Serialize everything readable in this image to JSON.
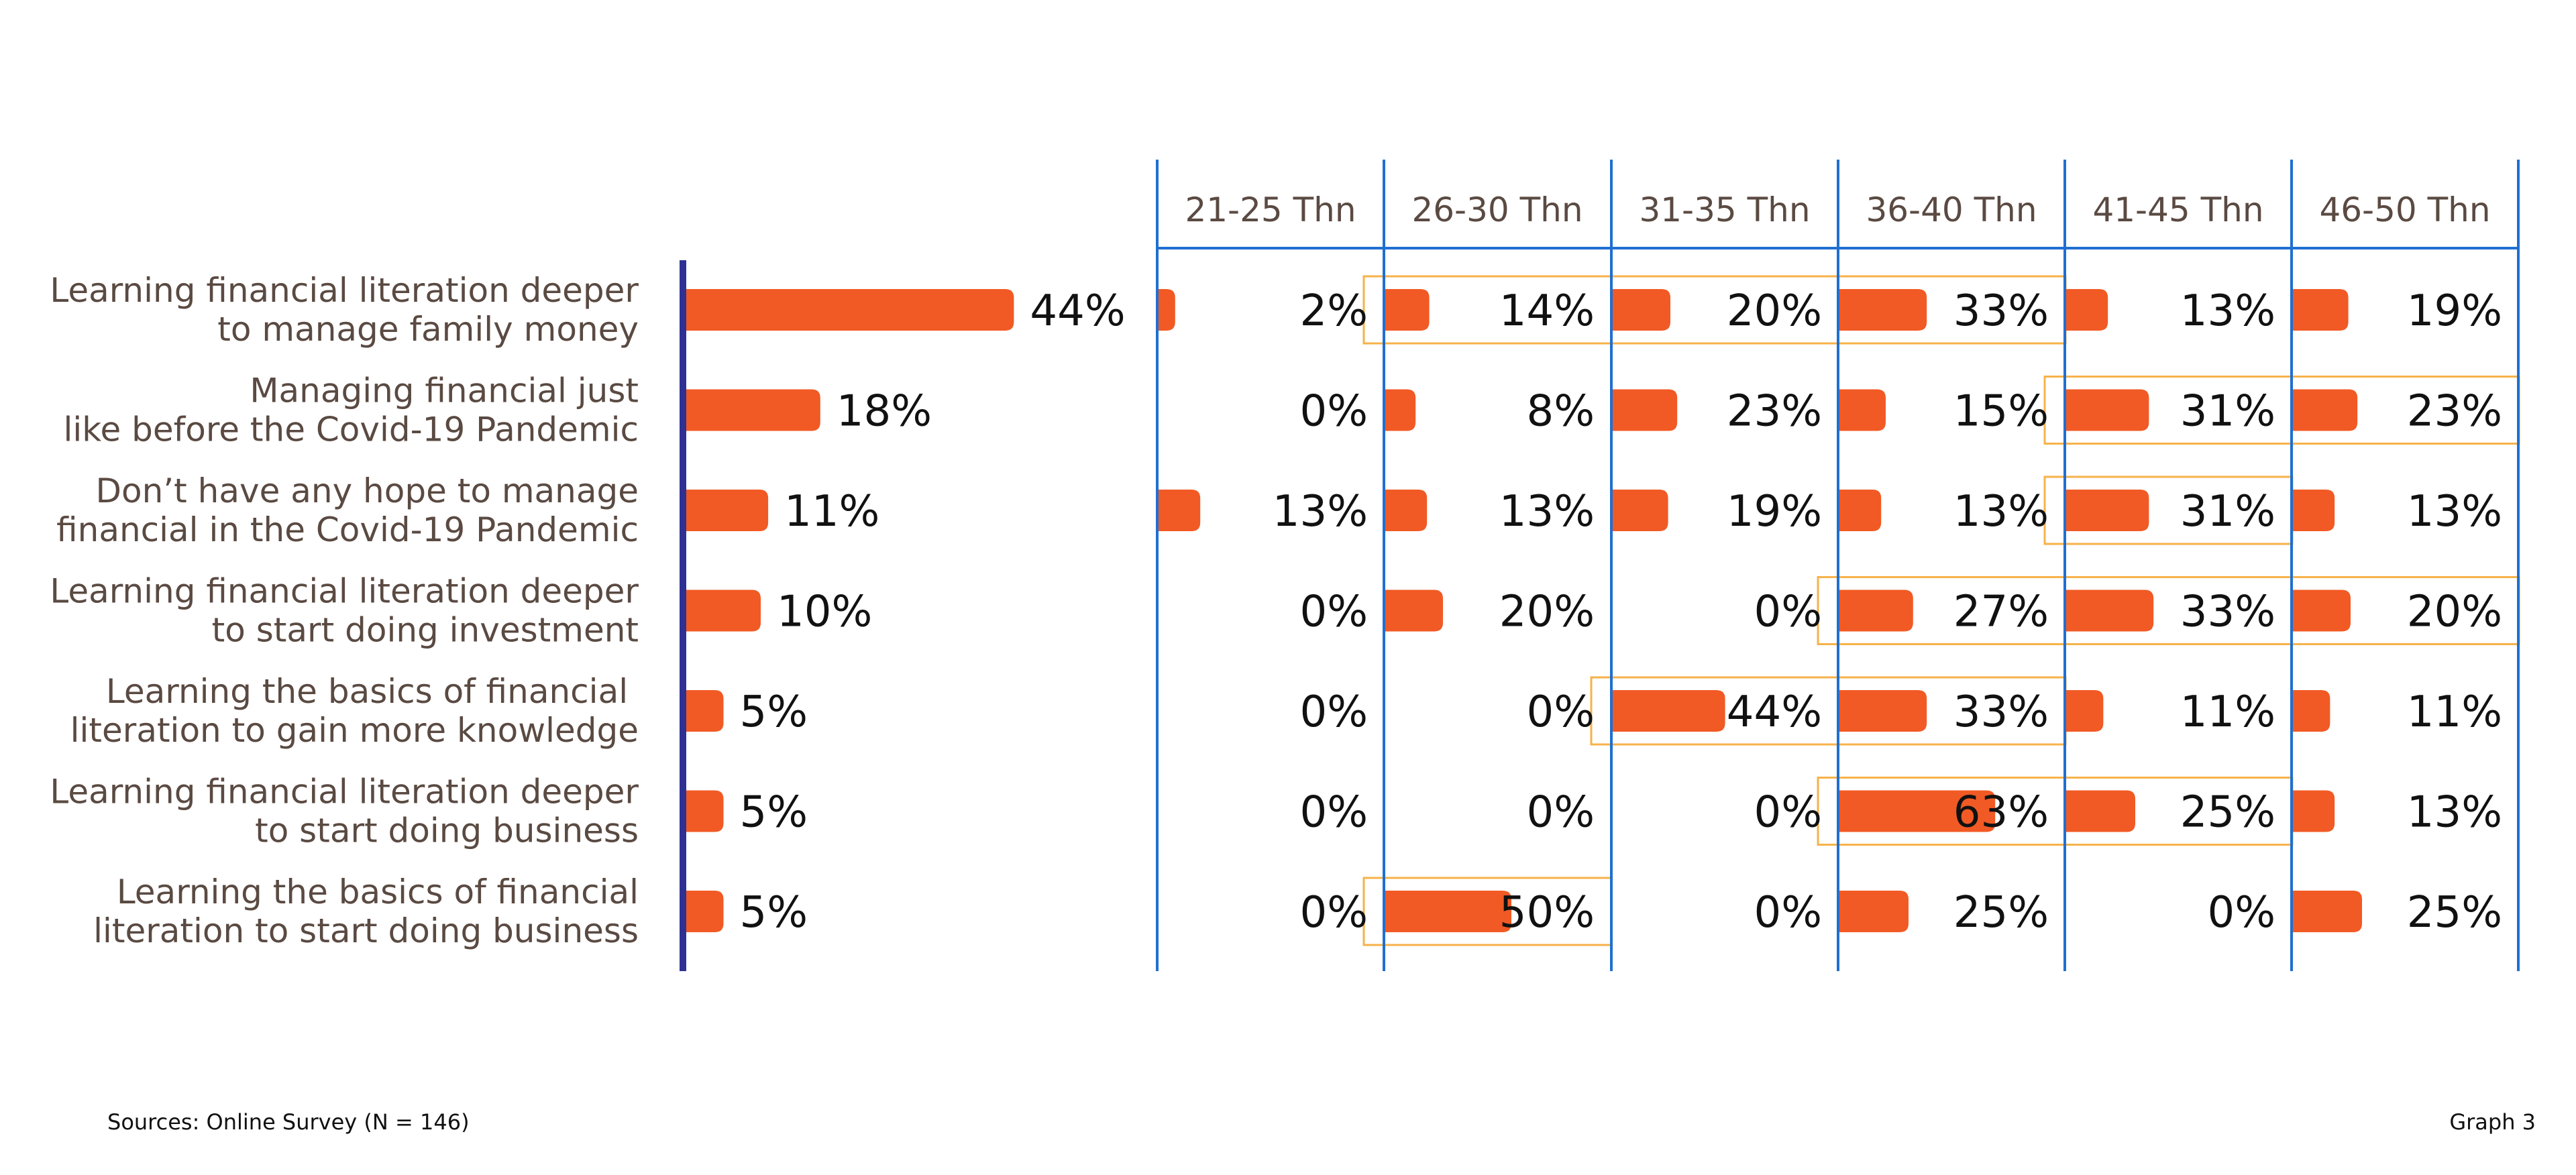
{
  "chart_data": {
    "type": "bar",
    "orientation": "horizontal",
    "categories": [
      "Learning financial literation deeper\nto manage family money",
      "Managing financial just\nlike before the Covid-19 Pandemic",
      "Don’t have any hope to manage\nfinancial in the Covid-19 Pandemic",
      "Learning financial literation deeper\nto start doing investment",
      "Learning the basics of financial \nliteration to gain more knowledge",
      "Learning financial literation deeper\nto start doing business",
      "Learning the basics of financial\nliteration to start doing business"
    ],
    "total": {
      "values": [
        44,
        18,
        11,
        10,
        5,
        5,
        5
      ],
      "labels": [
        "44%",
        "18%",
        "11%",
        "10%",
        "5%",
        "5%",
        "5%"
      ]
    },
    "series": [
      {
        "name": "21-25 Thn",
        "values": [
          2,
          0,
          13,
          0,
          0,
          0,
          0
        ],
        "labels": [
          "2%",
          "0%",
          "13%",
          "0%",
          "0%",
          "0%",
          "0%"
        ]
      },
      {
        "name": "26-30 Thn",
        "values": [
          14,
          8,
          13,
          20,
          0,
          0,
          50
        ],
        "labels": [
          "14%",
          "8%",
          "13%",
          "20%",
          "0%",
          "0%",
          "50%"
        ]
      },
      {
        "name": "31-35 Thn",
        "values": [
          20,
          23,
          19,
          0,
          44,
          0,
          0
        ],
        "labels": [
          "20%",
          "23%",
          "19%",
          "0%",
          "44%",
          "0%",
          "0%"
        ]
      },
      {
        "name": "36-40 Thn",
        "values": [
          33,
          15,
          13,
          27,
          33,
          63,
          25
        ],
        "labels": [
          "33%",
          "15%",
          "13%",
          "27%",
          "33%",
          "63%",
          "25%"
        ]
      },
      {
        "name": "41-45 Thn",
        "values": [
          13,
          31,
          31,
          33,
          11,
          25,
          0
        ],
        "labels": [
          "13%",
          "31%",
          "31%",
          "33%",
          "11%",
          "25%",
          "0%"
        ]
      },
      {
        "name": "46-50 Thn",
        "values": [
          19,
          23,
          13,
          20,
          11,
          13,
          25
        ],
        "labels": [
          "19%",
          "23%",
          "13%",
          "20%",
          "11%",
          "13%",
          "25%"
        ]
      }
    ],
    "highlight_groups": [
      {
        "row": 0,
        "from_series": 1,
        "to_series": 3
      },
      {
        "row": 1,
        "from_series": 4,
        "to_series": 5
      },
      {
        "row": 2,
        "from_series": 4,
        "to_series": 4
      },
      {
        "row": 3,
        "from_series": 3,
        "to_series": 5
      },
      {
        "row": 4,
        "from_series": 2,
        "to_series": 3
      },
      {
        "row": 5,
        "from_series": 3,
        "to_series": 4
      },
      {
        "row": 6,
        "from_series": 1,
        "to_series": 1
      }
    ],
    "colors": {
      "bar": "#F15A24",
      "main_axis": "#2E3192",
      "column_lines": "#1F6FD1",
      "highlight": "#F7B24A",
      "label_text": "#5a4a42",
      "value_text": "#111111"
    }
  },
  "footer": {
    "source": "Sources: Online Survey (N = 146)",
    "graph_label": "Graph 3"
  }
}
